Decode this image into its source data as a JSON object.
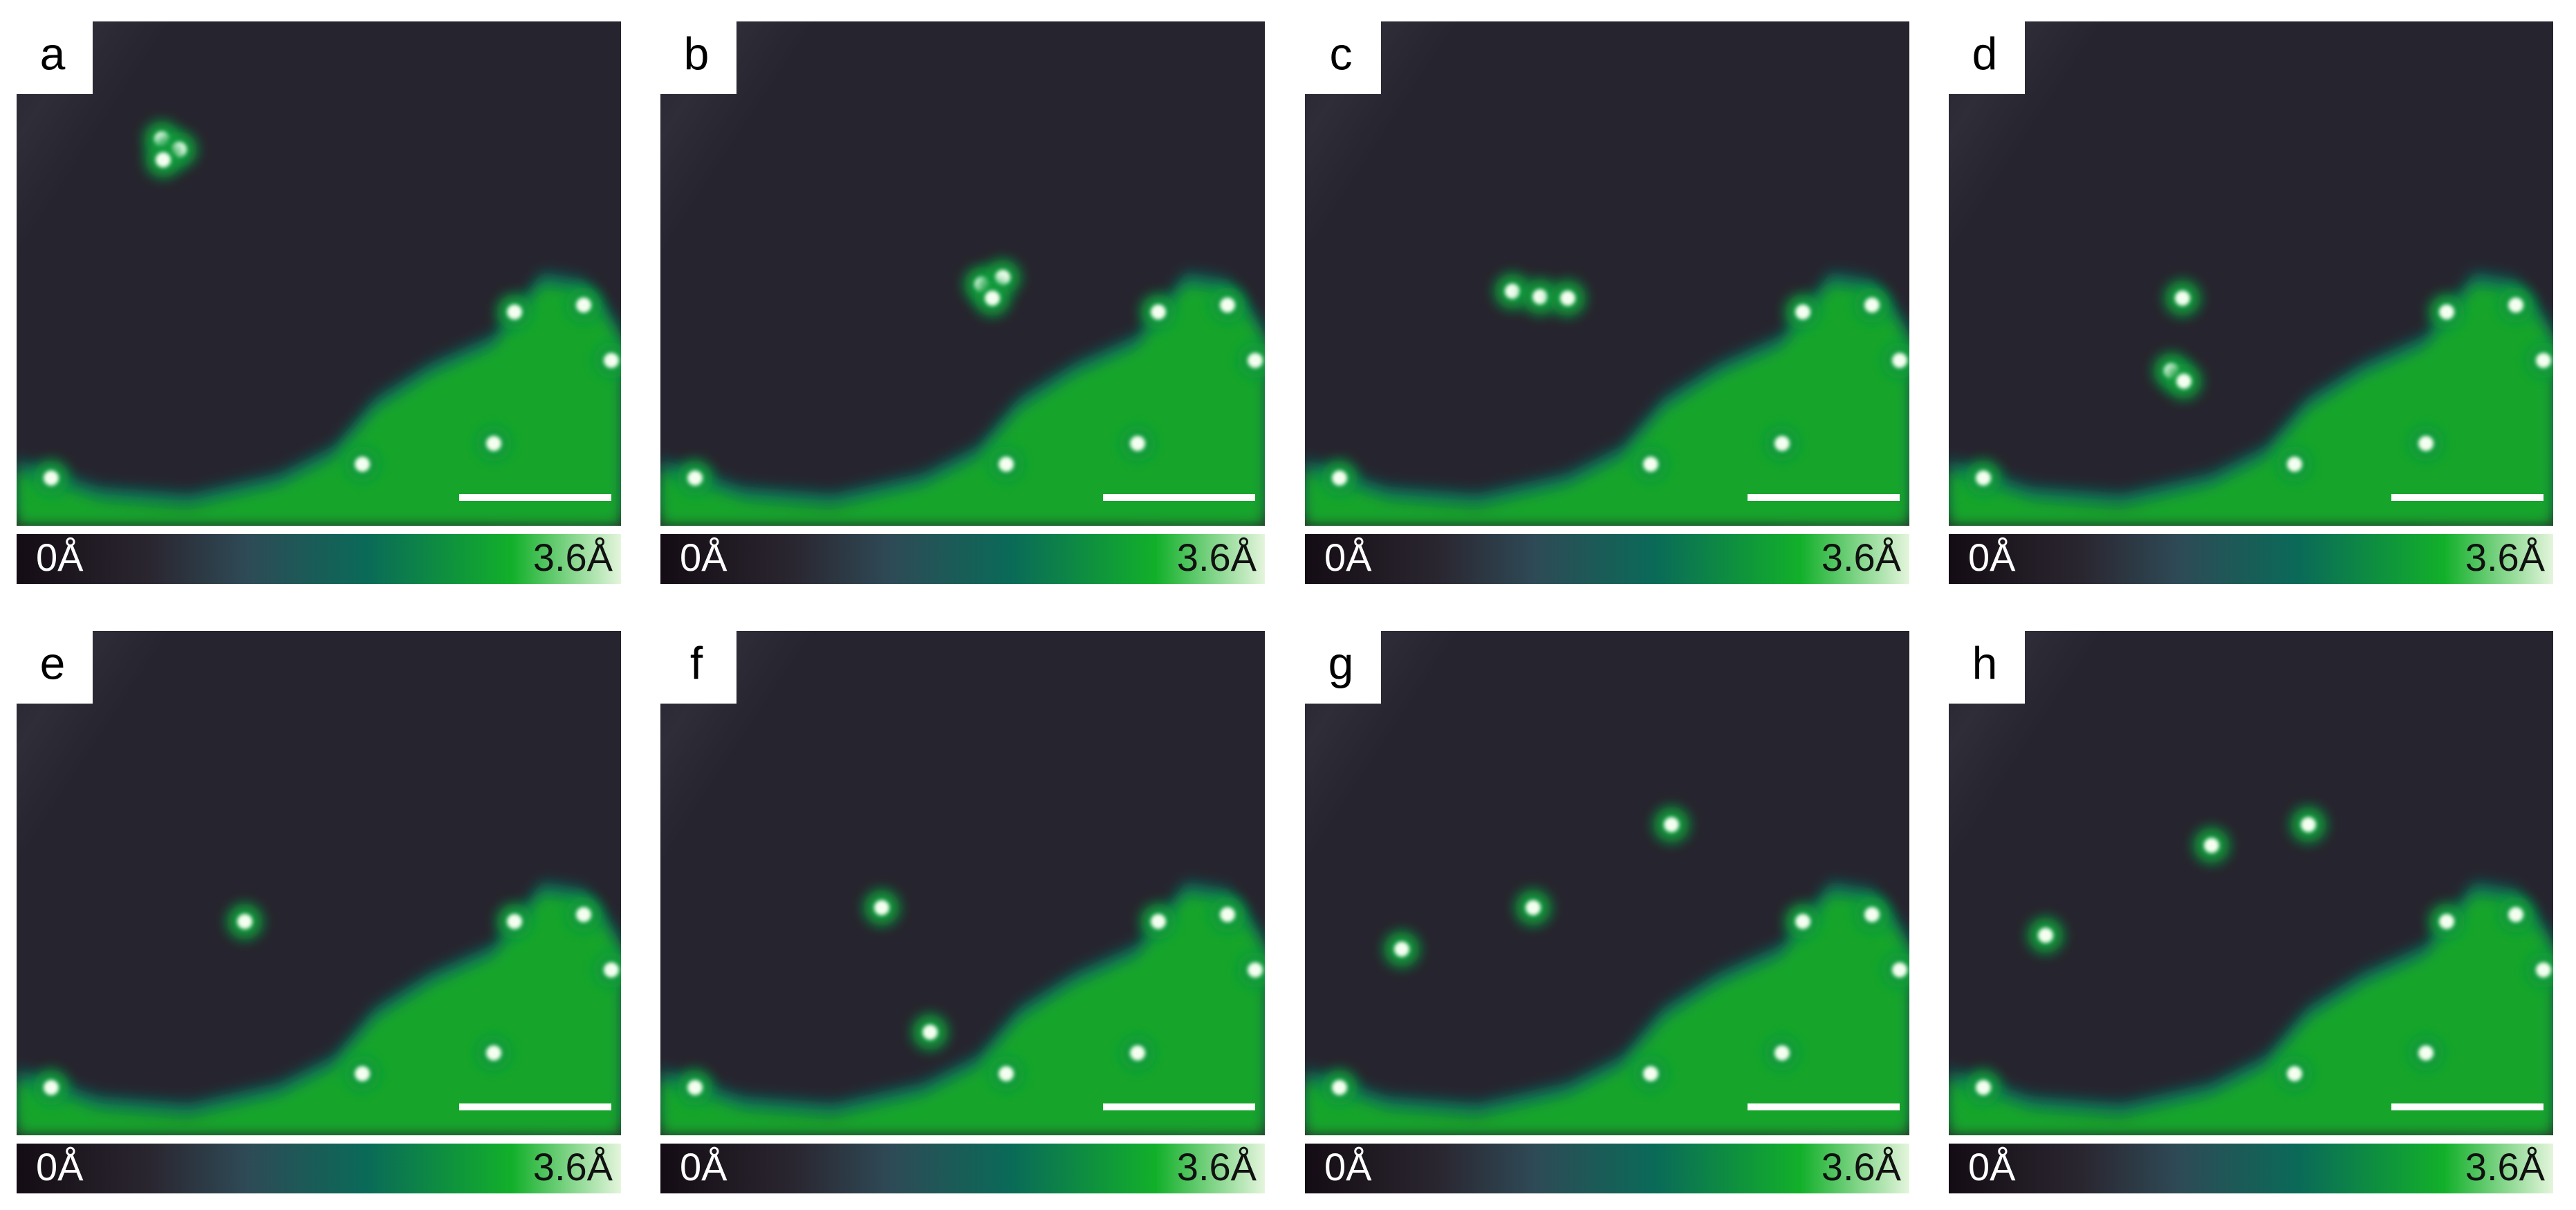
{
  "panels": [
    {
      "label": "a"
    },
    {
      "label": "b"
    },
    {
      "label": "c"
    },
    {
      "label": "d"
    },
    {
      "label": "e"
    },
    {
      "label": "f"
    },
    {
      "label": "g"
    },
    {
      "label": "h"
    }
  ],
  "colorbar": {
    "min_label": "0Å",
    "max_label": "3.6Å"
  }
}
